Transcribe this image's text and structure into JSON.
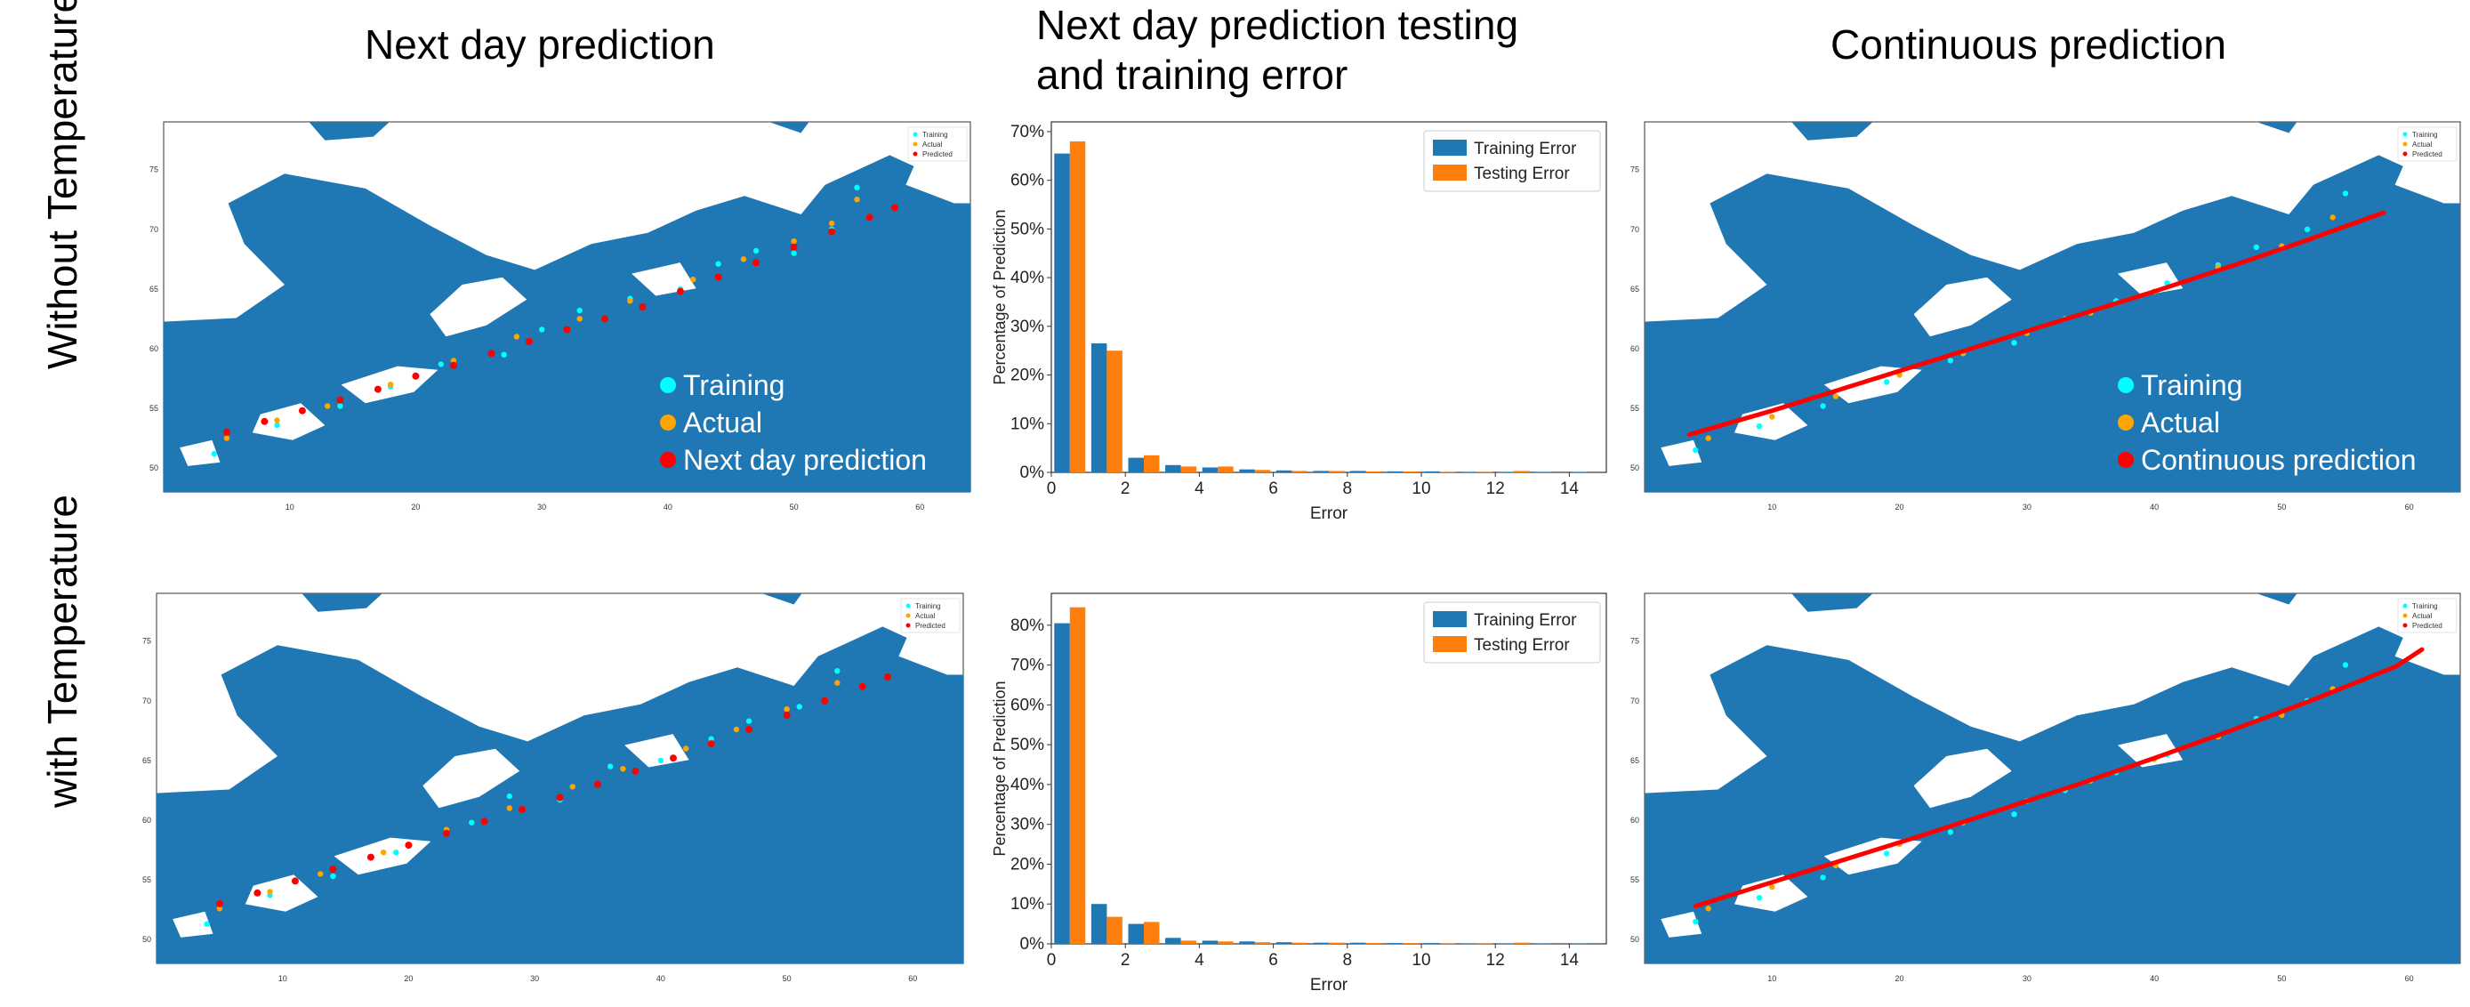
{
  "column_titles": [
    "Next day prediction",
    "Next day prediction testing\nand training error",
    "Continuous prediction"
  ],
  "row_titles": [
    "Without Temperature",
    "with Temperature"
  ],
  "colors": {
    "sea": "#ffffff",
    "land": "#1f77b4",
    "training": "#00ffff",
    "actual": "#ffa500",
    "predicted": "#ff0000",
    "bar_training": "#1f77b4",
    "bar_testing": "#ff7f0e"
  },
  "map_legend_small": [
    "Training",
    "Actual",
    "Predicted"
  ],
  "overlay_legends": {
    "next_day": [
      "Training",
      "Actual",
      "Next day prediction"
    ],
    "continuous": [
      "Training",
      "Actual",
      "Continuous prediction"
    ]
  },
  "chart_data": [
    {
      "id": "map_next_day_without_temp",
      "type": "scatter",
      "title": "",
      "xlabel": "",
      "ylabel": "",
      "xlim": [
        0,
        64
      ],
      "ylim": [
        48,
        79
      ],
      "xticks": [
        "10",
        "20",
        "30",
        "40",
        "50",
        "60"
      ],
      "yticks": [
        "50",
        "55",
        "60",
        "65",
        "70",
        "75"
      ],
      "legend": [
        "Training",
        "Actual",
        "Predicted"
      ],
      "series": [
        {
          "name": "Training",
          "x": [
            4,
            9,
            14,
            18,
            22,
            27,
            30,
            33,
            37,
            41,
            44,
            47,
            50,
            53,
            55
          ],
          "y": [
            51.2,
            53.6,
            55.2,
            56.8,
            58.7,
            59.5,
            61.6,
            63.2,
            64.2,
            65.0,
            67.1,
            68.2,
            68.0,
            70.0,
            73.5
          ]
        },
        {
          "name": "Actual",
          "x": [
            5,
            9,
            13,
            18,
            23,
            28,
            33,
            37,
            42,
            46,
            50,
            53,
            55
          ],
          "y": [
            52.5,
            54.0,
            55.2,
            57.0,
            59.0,
            61.0,
            62.5,
            64.0,
            65.8,
            67.5,
            69.0,
            70.5,
            72.5
          ]
        },
        {
          "name": "Predicted",
          "x": [
            5,
            8,
            11,
            14,
            17,
            20,
            23,
            26,
            29,
            32,
            35,
            38,
            41,
            44,
            47,
            50,
            53,
            56,
            58
          ],
          "y": [
            53.0,
            53.9,
            54.8,
            55.7,
            56.6,
            57.7,
            58.6,
            59.6,
            60.6,
            61.6,
            62.5,
            63.5,
            64.8,
            66.0,
            67.2,
            68.5,
            69.8,
            71.0,
            71.8
          ]
        }
      ]
    },
    {
      "id": "hist_without_temp",
      "type": "bar",
      "title": "",
      "xlabel": "Error",
      "ylabel": "Percentage of Prediction",
      "categories": [
        "0",
        "1",
        "2",
        "3",
        "4",
        "5",
        "6",
        "7",
        "8",
        "9",
        "10",
        "11",
        "12",
        "13",
        "14"
      ],
      "xticks": [
        "0",
        "2",
        "4",
        "6",
        "8",
        "10",
        "12",
        "14"
      ],
      "ylim": [
        0,
        72
      ],
      "yticks": [
        "0%",
        "10%",
        "20%",
        "30%",
        "40%",
        "50%",
        "60%",
        "70%"
      ],
      "legend_placement": "top-right",
      "series": [
        {
          "name": "Training Error",
          "values": [
            65.5,
            26.5,
            3.0,
            1.5,
            1.0,
            0.6,
            0.4,
            0.3,
            0.3,
            0.2,
            0.2,
            0.1,
            0.1,
            0.1,
            0.1
          ]
        },
        {
          "name": "Testing Error",
          "values": [
            68.0,
            25.0,
            3.5,
            1.2,
            1.2,
            0.5,
            0.3,
            0.3,
            0.2,
            0.2,
            0.1,
            0.1,
            0.3,
            0.0,
            0.0
          ]
        }
      ]
    },
    {
      "id": "map_continuous_without_temp",
      "type": "scatter",
      "title": "",
      "xlabel": "",
      "ylabel": "",
      "xlim": [
        0,
        64
      ],
      "ylim": [
        48,
        79
      ],
      "xticks": [
        "10",
        "20",
        "30",
        "40",
        "50",
        "60"
      ],
      "yticks": [
        "50",
        "55",
        "60",
        "65",
        "70",
        "75"
      ],
      "legend": [
        "Training",
        "Actual",
        "Predicted"
      ],
      "series": [
        {
          "name": "Training",
          "x": [
            4,
            9,
            14,
            19,
            24,
            29,
            33,
            37,
            41,
            45,
            48,
            52,
            55
          ],
          "y": [
            51.5,
            53.5,
            55.2,
            57.2,
            59.0,
            60.5,
            62.5,
            64.0,
            65.5,
            67.0,
            68.5,
            70.0,
            73.0
          ]
        },
        {
          "name": "Actual",
          "x": [
            5,
            10,
            15,
            20,
            25,
            30,
            35,
            40,
            45,
            50,
            54
          ],
          "y": [
            52.5,
            54.3,
            56.0,
            57.8,
            59.6,
            61.3,
            63.0,
            64.8,
            66.8,
            68.6,
            71.0
          ]
        },
        {
          "name": "Predicted",
          "x": [
            3.5,
            10,
            16,
            22,
            28,
            34,
            40,
            46,
            52,
            58
          ],
          "y": [
            52.8,
            54.8,
            56.8,
            58.8,
            60.8,
            62.8,
            64.8,
            66.9,
            69.1,
            71.4
          ]
        }
      ]
    },
    {
      "id": "map_next_day_with_temp",
      "type": "scatter",
      "title": "",
      "xlabel": "",
      "ylabel": "",
      "xlim": [
        0,
        64
      ],
      "ylim": [
        48,
        79
      ],
      "xticks": [
        "10",
        "20",
        "30",
        "40",
        "50",
        "60"
      ],
      "yticks": [
        "50",
        "55",
        "60",
        "65",
        "70",
        "75"
      ],
      "legend": [
        "Training",
        "Actual",
        "Predicted"
      ],
      "series": [
        {
          "name": "Training",
          "x": [
            4,
            9,
            14,
            19,
            25,
            28,
            32,
            36,
            40,
            44,
            47,
            51,
            54
          ],
          "y": [
            51.3,
            53.7,
            55.3,
            57.3,
            59.8,
            62.0,
            61.7,
            64.5,
            65.0,
            66.8,
            68.3,
            69.5,
            72.5
          ]
        },
        {
          "name": "Actual",
          "x": [
            5,
            9,
            13,
            18,
            23,
            28,
            33,
            37,
            42,
            46,
            50,
            54
          ],
          "y": [
            52.6,
            54.0,
            55.5,
            57.3,
            59.2,
            61.0,
            62.8,
            64.3,
            66.0,
            67.6,
            69.3,
            71.5
          ]
        },
        {
          "name": "Predicted",
          "x": [
            5,
            8,
            11,
            14,
            17,
            20,
            23,
            26,
            29,
            32,
            35,
            38,
            41,
            44,
            47,
            50,
            53,
            56,
            58
          ],
          "y": [
            53.0,
            53.9,
            54.9,
            55.9,
            56.9,
            57.9,
            58.9,
            59.9,
            60.9,
            61.9,
            63.0,
            64.1,
            65.2,
            66.4,
            67.6,
            68.8,
            70.0,
            71.2,
            72.0
          ]
        }
      ]
    },
    {
      "id": "hist_with_temp",
      "type": "bar",
      "title": "",
      "xlabel": "Error",
      "ylabel": "Percentage of Prediction",
      "categories": [
        "0",
        "1",
        "2",
        "3",
        "4",
        "5",
        "6",
        "7",
        "8",
        "9",
        "10",
        "11",
        "12",
        "13",
        "14"
      ],
      "xticks": [
        "0",
        "2",
        "4",
        "6",
        "8",
        "10",
        "12",
        "14"
      ],
      "ylim": [
        0,
        88
      ],
      "yticks": [
        "0%",
        "10%",
        "20%",
        "30%",
        "40%",
        "50%",
        "60%",
        "70%",
        "80%"
      ],
      "legend_placement": "top-right",
      "series": [
        {
          "name": "Training Error",
          "values": [
            80.5,
            10.0,
            5.0,
            1.5,
            0.8,
            0.6,
            0.4,
            0.3,
            0.3,
            0.2,
            0.2,
            0.1,
            0.1,
            0.1,
            0.1
          ]
        },
        {
          "name": "Testing Error",
          "values": [
            84.5,
            6.8,
            5.5,
            0.8,
            0.6,
            0.4,
            0.3,
            0.3,
            0.2,
            0.2,
            0.1,
            0.1,
            0.3,
            0.0,
            0.0
          ]
        }
      ]
    },
    {
      "id": "map_continuous_with_temp",
      "type": "scatter",
      "title": "",
      "xlabel": "",
      "ylabel": "",
      "xlim": [
        0,
        64
      ],
      "ylim": [
        48,
        79
      ],
      "xticks": [
        "10",
        "20",
        "30",
        "40",
        "50",
        "60"
      ],
      "yticks": [
        "50",
        "55",
        "60",
        "65",
        "70",
        "75"
      ],
      "legend": [
        "Training",
        "Actual",
        "Predicted"
      ],
      "series": [
        {
          "name": "Training",
          "x": [
            4,
            9,
            14,
            19,
            24,
            29,
            33,
            37,
            41,
            45,
            48,
            52,
            55
          ],
          "y": [
            51.5,
            53.5,
            55.2,
            57.2,
            59.0,
            60.5,
            62.5,
            64.0,
            65.5,
            67.0,
            68.5,
            70.0,
            73.0
          ]
        },
        {
          "name": "Actual",
          "x": [
            5,
            10,
            15,
            20,
            25,
            30,
            35,
            40,
            45,
            50,
            54
          ],
          "y": [
            52.6,
            54.4,
            56.2,
            58.0,
            59.8,
            61.6,
            63.3,
            65.1,
            67.0,
            68.8,
            71.0
          ]
        },
        {
          "name": "Predicted",
          "x": [
            4,
            10,
            16,
            22,
            28,
            34,
            40,
            46,
            52,
            56,
            59,
            61
          ],
          "y": [
            52.8,
            54.8,
            56.8,
            58.8,
            60.9,
            63.0,
            65.2,
            67.5,
            69.9,
            71.6,
            72.9,
            74.3
          ]
        }
      ]
    }
  ]
}
